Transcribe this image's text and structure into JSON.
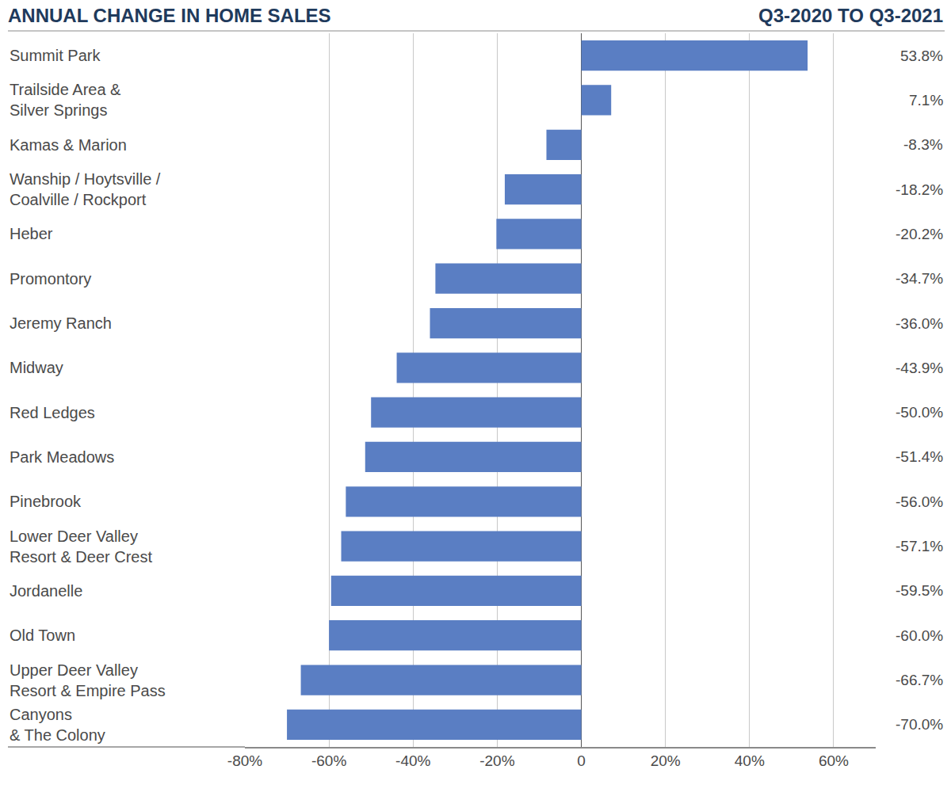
{
  "chart_data": {
    "type": "bar",
    "title": "ANNUAL CHANGE IN HOME SALES",
    "subtitle": "Q3-2020 TO Q3-2021",
    "orientation": "horizontal",
    "categories": [
      "Summit Park",
      "Trailside Area &\nSilver Springs",
      "Kamas & Marion",
      "Wanship / Hoytsville /\nCoalville / Rockport",
      "Heber",
      "Promontory",
      "Jeremy Ranch",
      "Midway",
      "Red Ledges",
      "Park Meadows",
      "Pinebrook",
      "Lower Deer Valley\nResort & Deer Crest",
      "Jordanelle",
      "Old Town",
      "Upper Deer Valley\nResort & Empire Pass",
      "Canyons\n& The Colony"
    ],
    "values": [
      53.8,
      7.1,
      -8.3,
      -18.2,
      -20.2,
      -34.7,
      -36.0,
      -43.9,
      -50.0,
      -51.4,
      -56.0,
      -57.1,
      -59.5,
      -60.0,
      -66.7,
      -70.0
    ],
    "value_labels": [
      "53.8%",
      "7.1%",
      "-8.3%",
      "-18.2%",
      "-20.2%",
      "-34.7%",
      "-36.0%",
      "-43.9%",
      "-50.0%",
      "-51.4%",
      "-56.0%",
      "-57.1%",
      "-59.5%",
      "-60.0%",
      "-66.7%",
      "-70.0%"
    ],
    "color": "#5a7ec3",
    "xlim": [
      -80,
      70
    ],
    "xticks": [
      {
        "value": -80,
        "label": "-80%"
      },
      {
        "value": -60,
        "label": "-60%"
      },
      {
        "value": -40,
        "label": "-40%"
      },
      {
        "value": -20,
        "label": "-20%"
      },
      0,
      {
        "value": 20,
        "label": "20%"
      },
      {
        "value": 40,
        "label": "40%"
      },
      {
        "value": 60,
        "label": "60%"
      }
    ],
    "grid": true,
    "data_labels": true
  }
}
